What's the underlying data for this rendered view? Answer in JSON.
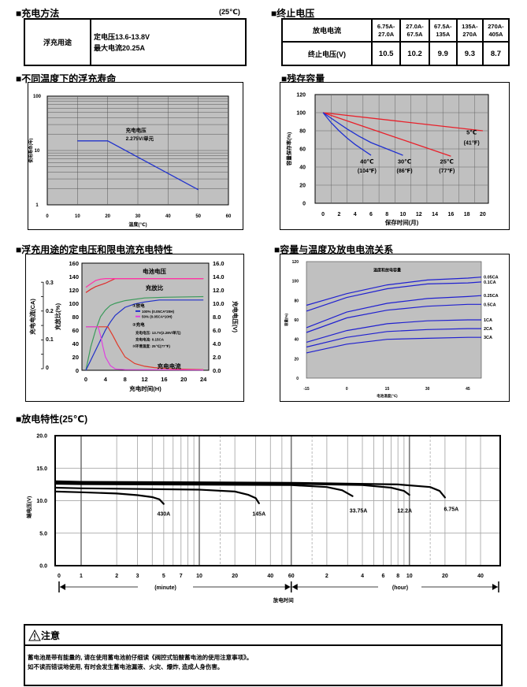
{
  "charging_method": {
    "title": "■充电方法",
    "temp_note": "(25℃)",
    "row_label": "浮充用途",
    "line1": "定电压13.6-13.8V",
    "line2": "最大电流20.25A"
  },
  "end_voltage": {
    "title": "■终止电压",
    "current_label": "放电电流",
    "voltage_label": "终止电压(V)",
    "currents": [
      "6.75A-27.0A",
      "27.0A-67.5A",
      "67.5A-135A",
      "135A-270A",
      "270A-405A"
    ],
    "voltages": [
      "10.5",
      "10.2",
      "9.9",
      "9.3",
      "8.7"
    ]
  },
  "section_titles": {
    "float_life": "■不同温度下的浮充寿命",
    "residual": "■残存容量",
    "charge": "■浮充用途的定电压和限电流充电特性",
    "capacity": "■容量与温度及放电电流关系",
    "discharge": "■放电特性(25℃)"
  },
  "caution": {
    "icon": "warning-triangle-icon",
    "title": "注意",
    "line1": "蓄电池是带有能量的, 请在使用蓄电池前仔细读《阀控式铅酸蓄电池的使用注意事项》。",
    "line2": "如不读而错误地使用, 有时会发生蓄电池漏液、火灾、爆炸, 造成人身伤害。"
  },
  "chart_data": [
    {
      "type": "line",
      "xlabel": "温度(℃)",
      "ylabel": "使用寿命(年)",
      "xlim": [
        0,
        60
      ],
      "ylim": [
        1,
        100
      ],
      "yscale": "log",
      "grid": true,
      "xticks": [
        "0",
        "10",
        "20",
        "30",
        "40",
        "50",
        "60"
      ],
      "yticks": [
        "1",
        "10",
        "100"
      ],
      "annotations": [
        "充电电压",
        "2.275V/单元"
      ],
      "series": [
        {
          "color": "#2233cc",
          "points": [
            [
              10,
              15
            ],
            [
              20,
              15
            ],
            [
              50,
              1.9
            ]
          ]
        }
      ]
    },
    {
      "type": "line",
      "xlabel": "保存时间(月)",
      "ylabel": "容量保存率(%)",
      "xlim": [
        0,
        20
      ],
      "ylim": [
        0,
        120
      ],
      "grid": true,
      "xticks": [
        "0",
        "2",
        "4",
        "6",
        "8",
        "10",
        "12",
        "14",
        "16",
        "18",
        "20"
      ],
      "yticks": [
        "0",
        "20",
        "40",
        "60",
        "80",
        "100",
        "120"
      ],
      "series": [
        {
          "name": "5℃",
          "name2": "(41℉)",
          "color": "#e8202a",
          "points": [
            [
              0,
              100
            ],
            [
              20,
              80
            ]
          ]
        },
        {
          "name": "25℃",
          "name2": "(77℉)",
          "color": "#e8202a",
          "points": [
            [
              0,
              100
            ],
            [
              16,
              52
            ]
          ]
        },
        {
          "name": "30℃",
          "name2": "(86℉)",
          "color": "#2030d0",
          "points": [
            [
              0,
              100
            ],
            [
              1.5,
              91
            ],
            [
              3,
              82
            ],
            [
              4.5,
              74
            ],
            [
              6,
              67
            ],
            [
              8,
              60
            ],
            [
              10,
              53
            ]
          ]
        },
        {
          "name": "40℃",
          "name2": "(104℉)",
          "color": "#2030d0",
          "points": [
            [
              0,
              100
            ],
            [
              1,
              89
            ],
            [
              2,
              80
            ],
            [
              3,
              72
            ],
            [
              4,
              65
            ],
            [
              5,
              59
            ],
            [
              6,
              53
            ]
          ]
        }
      ]
    },
    {
      "type": "line",
      "xlabel": "充电时间(H)",
      "ylabel_left_outer": "充电电流(CA)",
      "ylabel_left_inner": "充放比(%)",
      "ylabel_right": "充电电压(V)",
      "xlim": [
        0,
        24
      ],
      "ylim": [
        0,
        160
      ],
      "ylim_ca": [
        0,
        0.3
      ],
      "ylim_v": [
        0,
        16
      ],
      "xticks": [
        "0",
        "4",
        "8",
        "12",
        "16",
        "20",
        "24"
      ],
      "yticks": [
        "0",
        "20",
        "40",
        "60",
        "80",
        "100",
        "120",
        "140",
        "160"
      ],
      "yticks_ca": [
        "0",
        "0.1",
        "0.2",
        "0.3"
      ],
      "yticks_v": [
        "0.0",
        "2.0",
        "4.0",
        "6.0",
        "8.0",
        "10.0",
        "12.0",
        "14.0",
        "16.0"
      ],
      "labels": {
        "voltage": "电池电压",
        "ratio": "充放比",
        "current": "充电电流"
      },
      "legend": {
        "discharge_head": "①放电",
        "item_100": "100% (0.05CA*20H)",
        "item_50": "50% (0.05CA*10H)",
        "charge_head": "②充电",
        "charge_v": "充电电压: 13.7V(2.28V/单元)",
        "charge_i": "充电电流: 0.15CA",
        "ambient": "③环境温度: 25℃(77℉)"
      },
      "series": [
        {
          "id": "voltage-100",
          "color": "#e02a2a",
          "points": [
            [
              0,
              116
            ],
            [
              1,
              121
            ],
            [
              2,
              125
            ],
            [
              4,
              130
            ],
            [
              6,
              137
            ],
            [
              24,
              137
            ]
          ]
        },
        {
          "id": "voltage-50",
          "color": "#ff33aa",
          "points": [
            [
              0,
              124
            ],
            [
              1,
              129
            ],
            [
              2,
              134
            ],
            [
              3,
              136
            ],
            [
              4,
              137
            ],
            [
              24,
              137
            ]
          ]
        },
        {
          "id": "ratio-50",
          "color": "#3a9a5a",
          "points": [
            [
              0,
              0
            ],
            [
              1,
              35
            ],
            [
              2,
              60
            ],
            [
              3,
              80
            ],
            [
              4,
              90
            ],
            [
              5,
              97
            ],
            [
              6,
              100
            ],
            [
              8,
              104
            ],
            [
              12,
              108
            ],
            [
              16,
              109
            ],
            [
              24,
              110
            ]
          ]
        },
        {
          "id": "ratio-100",
          "color": "#2030c8",
          "points": [
            [
              0,
              0
            ],
            [
              2,
              30
            ],
            [
              4,
              60
            ],
            [
              5,
              72
            ],
            [
              6,
              82
            ],
            [
              8,
              94
            ],
            [
              10,
              99
            ],
            [
              12,
              102
            ],
            [
              15,
              105
            ],
            [
              24,
              105
            ]
          ]
        },
        {
          "id": "current-100",
          "color": "#e03a2a",
          "points": [
            [
              0,
              65
            ],
            [
              4.5,
              65
            ],
            [
              5.5,
              52
            ],
            [
              6.5,
              38
            ],
            [
              8,
              20
            ],
            [
              10,
              10
            ],
            [
              12,
              6
            ],
            [
              14,
              4
            ],
            [
              18,
              2
            ],
            [
              24,
              1
            ]
          ]
        },
        {
          "id": "current-50",
          "color": "#e040e0",
          "points": [
            [
              0,
              65
            ],
            [
              2.5,
              65
            ],
            [
              3,
              52
            ],
            [
              3.5,
              35
            ],
            [
              4,
              20
            ],
            [
              5,
              7
            ],
            [
              6,
              2
            ],
            [
              8,
              1
            ],
            [
              24,
              0.5
            ]
          ]
        }
      ]
    },
    {
      "type": "line",
      "title": "温度和放电容量",
      "xlabel": "电池温度(℃)",
      "ylabel": "容量(%)",
      "xlim": [
        -15,
        50
      ],
      "ylim": [
        0,
        120
      ],
      "xticks": [
        "-15",
        "0",
        "15",
        "30",
        "45"
      ],
      "yticks": [
        "0",
        "20",
        "40",
        "60",
        "80",
        "100",
        "120"
      ],
      "x": [
        -15,
        0,
        15,
        30,
        45,
        50
      ],
      "series": [
        {
          "name": "0.05CA",
          "values": [
            75,
            87,
            96,
            101,
            103,
            104
          ]
        },
        {
          "name": "0.1CA",
          "values": [
            69,
            83,
            92,
            97,
            98,
            99
          ]
        },
        {
          "name": "0.25CA",
          "values": [
            52,
            68,
            77,
            82,
            84,
            85
          ]
        },
        {
          "name": "0.5CA",
          "values": [
            47,
            62,
            70,
            74,
            76,
            76
          ]
        },
        {
          "name": "1CA",
          "values": [
            37,
            49,
            56,
            59,
            60,
            60
          ]
        },
        {
          "name": "2CA",
          "values": [
            32,
            42,
            48,
            50,
            51,
            51
          ]
        },
        {
          "name": "3CA",
          "values": [
            26,
            35,
            40,
            41,
            42,
            42
          ]
        }
      ],
      "color": "#2020d0"
    },
    {
      "type": "line",
      "xlabel": "放电时间",
      "ylabel": "端电压(V)",
      "xscale": "log",
      "ylim": [
        0,
        20
      ],
      "yticks": [
        "0.0",
        "5.0",
        "10.0",
        "15.0",
        "20.0"
      ],
      "unit_labels": {
        "minute": "(minute)",
        "hour": "(hour)"
      },
      "xticks": [
        {
          "label": "0",
          "min": 0
        },
        {
          "label": "1",
          "min": 1
        },
        {
          "label": "2",
          "min": 2
        },
        {
          "label": "3",
          "min": 3
        },
        {
          "label": "5",
          "min": 5
        },
        {
          "label": "7",
          "min": 7
        },
        {
          "label": "10",
          "min": 10
        },
        {
          "label": "20",
          "min": 20
        },
        {
          "label": "40",
          "min": 40
        },
        {
          "label": "60",
          "min": 60
        },
        {
          "label": "2",
          "h": 2
        },
        {
          "label": "4",
          "h": 4
        },
        {
          "label": "6",
          "h": 6
        },
        {
          "label": "8",
          "h": 8
        },
        {
          "label": "10",
          "h": 10
        },
        {
          "label": "20",
          "h": 20
        },
        {
          "label": "40",
          "h": 40
        }
      ],
      "series": [
        {
          "name": "430A",
          "points": [
            [
              0,
              "min",
              11.4
            ],
            [
              1,
              "min",
              11.3
            ],
            [
              2,
              "min",
              11.1
            ],
            [
              3,
              "min",
              10.85
            ],
            [
              4,
              "min",
              10.55
            ],
            [
              4.6,
              "min",
              10.2
            ],
            [
              5,
              "min",
              9.5
            ]
          ]
        },
        {
          "name": "145A",
          "points": [
            [
              0,
              "min",
              12.0
            ],
            [
              1,
              "min",
              11.9
            ],
            [
              10,
              "min",
              11.7
            ],
            [
              20,
              "min",
              11.4
            ],
            [
              26,
              "min",
              10.9
            ],
            [
              30,
              "min",
              10.4
            ],
            [
              32,
              "min",
              9.6
            ]
          ]
        },
        {
          "name": "33.75A",
          "points": [
            [
              0,
              "min",
              12.6
            ],
            [
              1,
              "min",
              12.55
            ],
            [
              1,
              "h",
              12.4
            ],
            [
              2,
              "h",
              12.1
            ],
            [
              2.7,
              "h",
              11.6
            ],
            [
              3.3,
              "h",
              10.7
            ]
          ]
        },
        {
          "name": "12.2A",
          "points": [
            [
              0,
              "min",
              12.8
            ],
            [
              1,
              "min",
              12.75
            ],
            [
              1,
              "h",
              12.6
            ],
            [
              4,
              "h",
              12.4
            ],
            [
              7,
              "h",
              12.0
            ],
            [
              9,
              "h",
              11.5
            ],
            [
              10,
              "h",
              10.9
            ]
          ]
        },
        {
          "name": "6.75A",
          "points": [
            [
              0,
              "min",
              13.0
            ],
            [
              1,
              "min",
              12.9
            ],
            [
              1,
              "h",
              12.75
            ],
            [
              8,
              "h",
              12.5
            ],
            [
              15,
              "h",
              12.1
            ],
            [
              18,
              "h",
              11.5
            ],
            [
              20,
              "h",
              10.5
            ]
          ]
        }
      ]
    }
  ]
}
